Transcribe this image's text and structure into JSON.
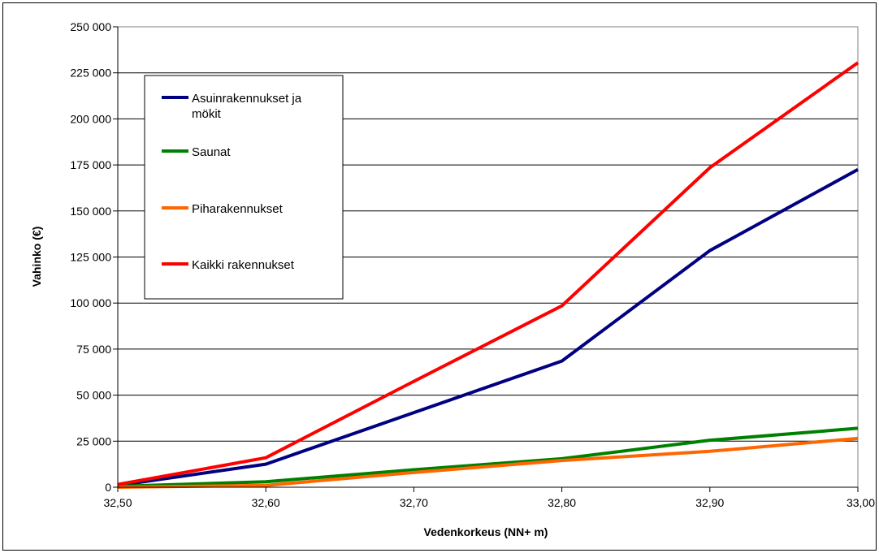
{
  "chart_data": {
    "type": "line",
    "title": "",
    "xlabel": "Vedenkorkeus (NN+ m)",
    "ylabel": "Vahinko (€)",
    "x": [
      "32,50",
      "32,60",
      "32,70",
      "32,80",
      "32,90",
      "33,00"
    ],
    "x_values": [
      32.5,
      32.6,
      32.7,
      32.8,
      32.9,
      33.0
    ],
    "ylim": [
      0,
      250000
    ],
    "yticks": [
      0,
      25000,
      50000,
      75000,
      100000,
      125000,
      150000,
      175000,
      200000,
      225000,
      250000
    ],
    "ytick_labels": [
      "0",
      "25 000",
      "50 000",
      "75 000",
      "100 000",
      "125 000",
      "150 000",
      "175 000",
      "200 000",
      "225 000",
      "250 000"
    ],
    "grid": true,
    "legend_position": "top-left",
    "series": [
      {
        "name": "Asuinrakennukset ja mökit",
        "color": "#000080",
        "values": [
          1000,
          12500,
          40500,
          68500,
          128500,
          172500
        ]
      },
      {
        "name": "Saunat",
        "color": "#008000",
        "values": [
          500,
          3000,
          9500,
          15500,
          25500,
          32000
        ]
      },
      {
        "name": "Piharakennukset",
        "color": "#ff6600",
        "values": [
          0,
          1000,
          8000,
          14500,
          19500,
          26500
        ]
      },
      {
        "name": "Kaikki rakennukset",
        "color": "#ff0000",
        "values": [
          1500,
          16000,
          57500,
          98500,
          173500,
          230500
        ]
      }
    ]
  }
}
